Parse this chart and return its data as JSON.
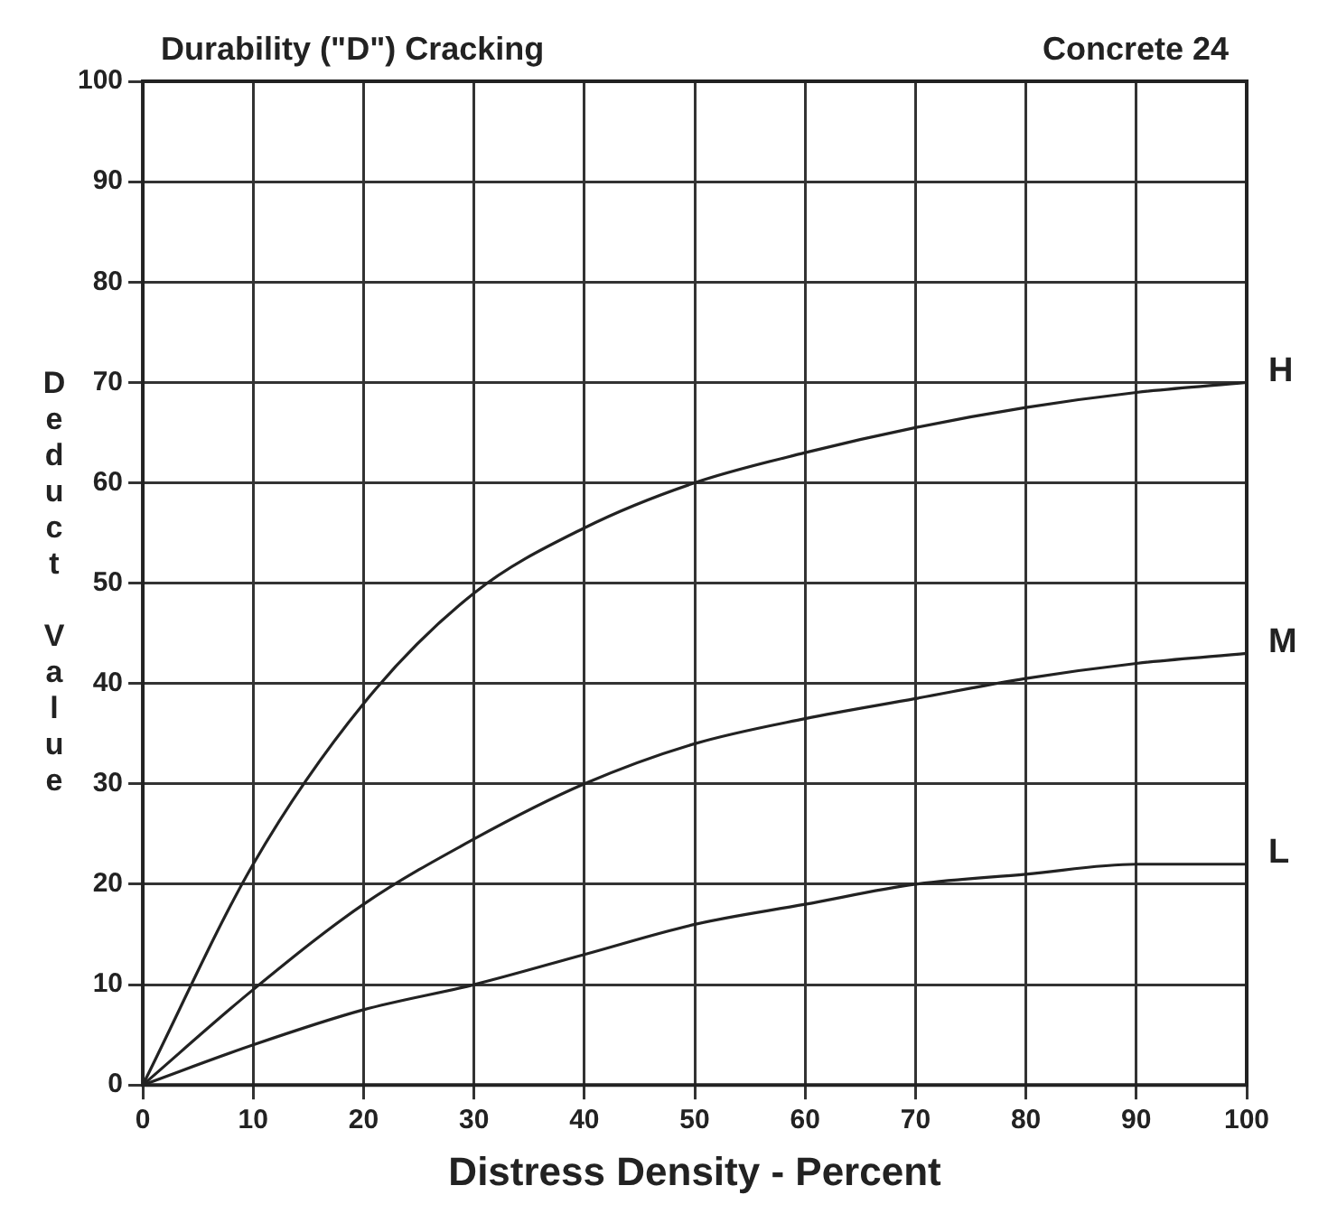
{
  "chart_data": {
    "type": "line",
    "title": "Durability (\"D\") Cracking",
    "annotations": [
      "Concrete 24"
    ],
    "xlabel": "Distress Density - Percent",
    "ylabel": "Deduct Value",
    "x": [
      0,
      10,
      20,
      30,
      40,
      50,
      60,
      70,
      80,
      90,
      100
    ],
    "series": [
      {
        "name": "H",
        "color": "#222222",
        "values": [
          0,
          22,
          38,
          49,
          55.5,
          60,
          63,
          65.5,
          67.5,
          69,
          70
        ]
      },
      {
        "name": "M",
        "color": "#222222",
        "values": [
          0,
          9.5,
          18,
          24.5,
          30,
          34,
          36.5,
          38.5,
          40.5,
          42,
          43
        ]
      },
      {
        "name": "L",
        "color": "#222222",
        "values": [
          0,
          4,
          7.5,
          10,
          13,
          16,
          18,
          20,
          21,
          22,
          22
        ]
      }
    ],
    "xlim": [
      0,
      100
    ],
    "xticks": [
      0,
      10,
      20,
      30,
      40,
      50,
      60,
      70,
      80,
      90,
      100
    ],
    "ylim": [
      0,
      100
    ],
    "yticks": [
      0,
      10,
      20,
      30,
      40,
      50,
      60,
      70,
      80,
      90,
      100
    ],
    "grid": true,
    "legend": false,
    "marker": "none",
    "line_style": "solid"
  }
}
